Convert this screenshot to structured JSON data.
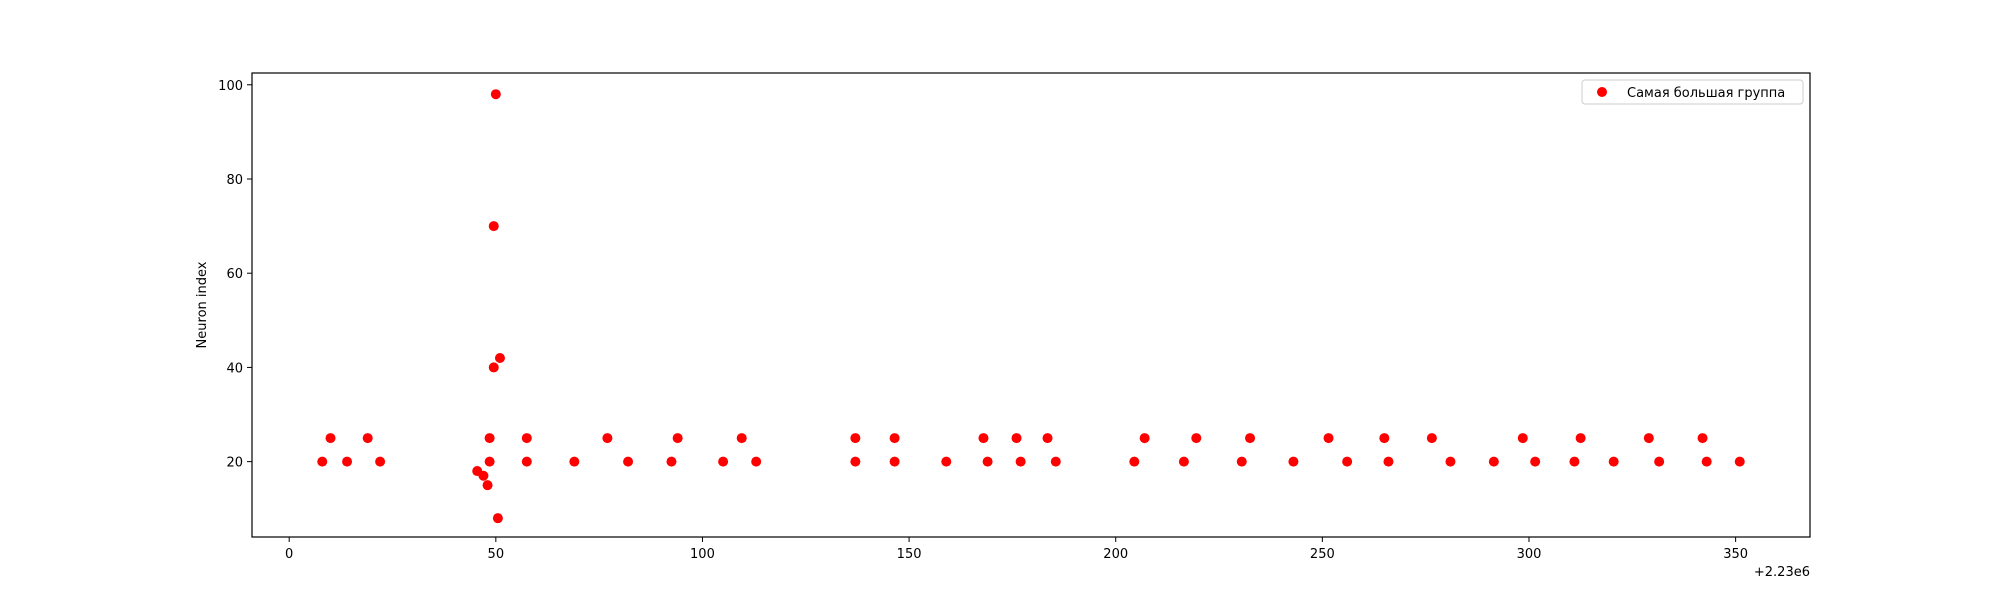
{
  "chart_data": {
    "type": "scatter",
    "title": "",
    "xlabel": "",
    "ylabel": "Neuron index",
    "x_offset_label": "+2.23e6",
    "xlim": [
      -9,
      368
    ],
    "ylim": [
      4,
      102.5
    ],
    "x_ticks": [
      0,
      50,
      100,
      150,
      200,
      250,
      300,
      350
    ],
    "y_ticks": [
      20,
      40,
      60,
      80,
      100
    ],
    "grid": false,
    "legend_position": "top-right",
    "series": [
      {
        "name": "Самая большая группа",
        "color": "#ff0000",
        "points": [
          {
            "x": 8,
            "y": 20
          },
          {
            "x": 10,
            "y": 25
          },
          {
            "x": 14,
            "y": 20
          },
          {
            "x": 19,
            "y": 25
          },
          {
            "x": 22,
            "y": 20
          },
          {
            "x": 45.5,
            "y": 18
          },
          {
            "x": 47,
            "y": 17
          },
          {
            "x": 48,
            "y": 15
          },
          {
            "x": 48.5,
            "y": 20
          },
          {
            "x": 48.5,
            "y": 25
          },
          {
            "x": 49.5,
            "y": 40
          },
          {
            "x": 49.5,
            "y": 70
          },
          {
            "x": 50,
            "y": 98
          },
          {
            "x": 51,
            "y": 42
          },
          {
            "x": 50.5,
            "y": 8
          },
          {
            "x": 57.5,
            "y": 25
          },
          {
            "x": 57.5,
            "y": 20
          },
          {
            "x": 69,
            "y": 20
          },
          {
            "x": 77,
            "y": 25
          },
          {
            "x": 82,
            "y": 20
          },
          {
            "x": 92.5,
            "y": 20
          },
          {
            "x": 94,
            "y": 25
          },
          {
            "x": 105,
            "y": 20
          },
          {
            "x": 109.5,
            "y": 25
          },
          {
            "x": 113,
            "y": 20
          },
          {
            "x": 137,
            "y": 25
          },
          {
            "x": 137,
            "y": 20
          },
          {
            "x": 146.5,
            "y": 25
          },
          {
            "x": 146.5,
            "y": 20
          },
          {
            "x": 159,
            "y": 20
          },
          {
            "x": 168,
            "y": 25
          },
          {
            "x": 169,
            "y": 20
          },
          {
            "x": 176,
            "y": 25
          },
          {
            "x": 177,
            "y": 20
          },
          {
            "x": 183.5,
            "y": 25
          },
          {
            "x": 185.5,
            "y": 20
          },
          {
            "x": 204.5,
            "y": 20
          },
          {
            "x": 207,
            "y": 25
          },
          {
            "x": 216.5,
            "y": 20
          },
          {
            "x": 219.5,
            "y": 25
          },
          {
            "x": 230.5,
            "y": 20
          },
          {
            "x": 232.5,
            "y": 25
          },
          {
            "x": 243,
            "y": 20
          },
          {
            "x": 251.5,
            "y": 25
          },
          {
            "x": 256,
            "y": 20
          },
          {
            "x": 265,
            "y": 25
          },
          {
            "x": 266,
            "y": 20
          },
          {
            "x": 276.5,
            "y": 25
          },
          {
            "x": 281,
            "y": 20
          },
          {
            "x": 291.5,
            "y": 20
          },
          {
            "x": 298.5,
            "y": 25
          },
          {
            "x": 301.5,
            "y": 20
          },
          {
            "x": 311,
            "y": 20
          },
          {
            "x": 312.5,
            "y": 25
          },
          {
            "x": 320.5,
            "y": 20
          },
          {
            "x": 329,
            "y": 25
          },
          {
            "x": 331.5,
            "y": 20
          },
          {
            "x": 342,
            "y": 25
          },
          {
            "x": 343,
            "y": 20
          },
          {
            "x": 351,
            "y": 20
          }
        ]
      }
    ]
  }
}
